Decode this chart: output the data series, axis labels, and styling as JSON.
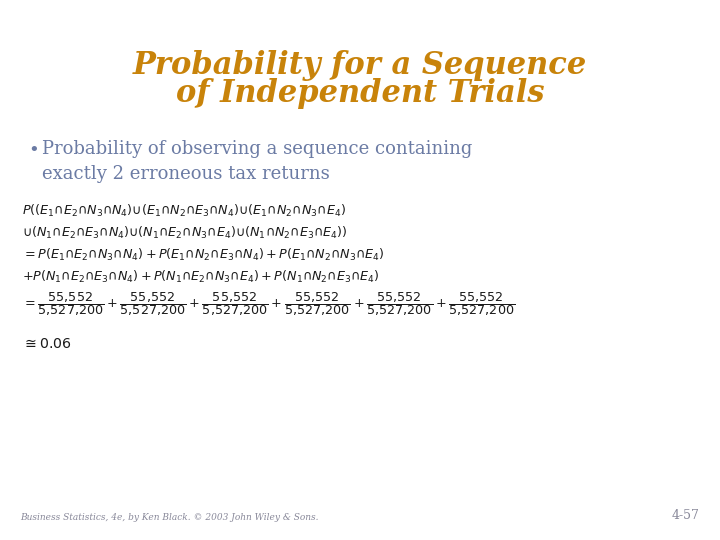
{
  "title_line1": "Probability for a Sequence",
  "title_line2": "of Independent Trials",
  "title_color": "#C8830A",
  "bullet_text": "Probability of observing a sequence containing\nexactly 2 erroneous tax returns",
  "bullet_color": "#6B7BA4",
  "math_color": "#1A1A1A",
  "bg_color": "#FFFFFF",
  "footer_left": "Business Statistics, 4e, by Ken Black. © 2003 John Wiley & Sons.",
  "footer_right": "4-57",
  "footer_color": "#888899",
  "title_fontsize": 22,
  "bullet_fontsize": 13,
  "math_fontsize": 9.2,
  "footer_fontsize": 6.5
}
